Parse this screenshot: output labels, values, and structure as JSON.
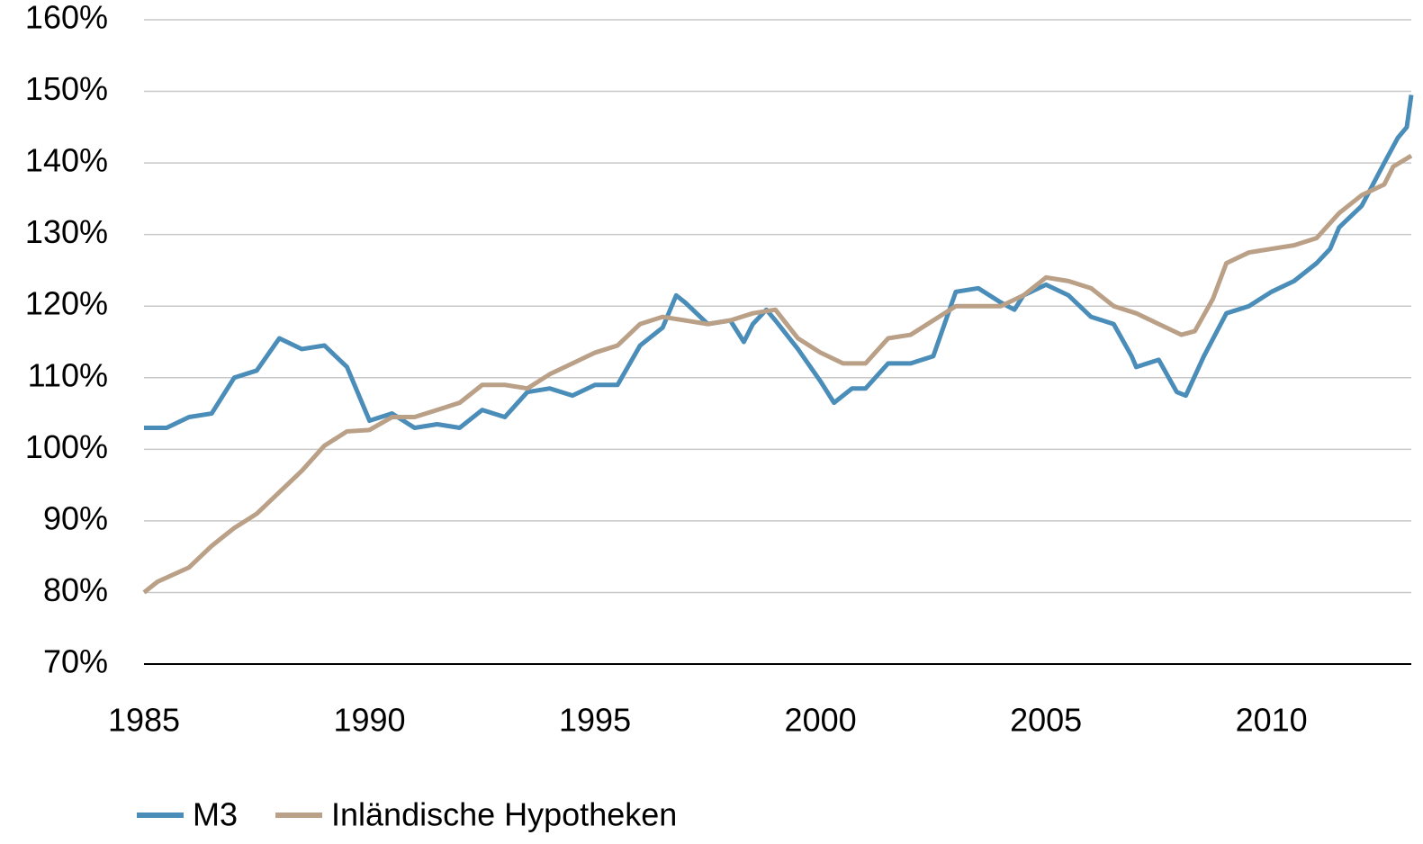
{
  "chart_data": {
    "type": "line",
    "series": [
      {
        "name": "M3",
        "color": "#4a8db8",
        "x": [
          1985,
          1985.5,
          1986,
          1986.5,
          1987,
          1987.5,
          1988,
          1988.5,
          1989,
          1989.5,
          1990,
          1990.5,
          1991,
          1991.5,
          1992,
          1992.5,
          1993,
          1993.5,
          1994,
          1994.5,
          1995,
          1995.5,
          1996,
          1996.5,
          1996.8,
          1997,
          1997.5,
          1998,
          1998.3,
          1998.5,
          1998.8,
          1999,
          1999.5,
          2000,
          2000.3,
          2000.7,
          2001,
          2001.5,
          2002,
          2002.5,
          2003,
          2003.5,
          2004,
          2004.3,
          2004.5,
          2005,
          2005.5,
          2006,
          2006.5,
          2006.9,
          2007,
          2007.5,
          2007.9,
          2008.1,
          2008.5,
          2009,
          2009.5,
          2010,
          2010.5,
          2011,
          2011.3,
          2011.5,
          2012,
          2012.5,
          2012.8,
          2013,
          2013.1
        ],
        "values": [
          103,
          103,
          104.5,
          105,
          110,
          111,
          115.5,
          114,
          114.5,
          111.5,
          104,
          105,
          103,
          103.5,
          103,
          105.5,
          104.5,
          108,
          108.5,
          107.5,
          109,
          109,
          114.5,
          117,
          121.5,
          120.5,
          117.5,
          118,
          115,
          117.5,
          119.5,
          118,
          114,
          109.5,
          106.5,
          108.5,
          108.5,
          112,
          112,
          113,
          122,
          122.5,
          120.5,
          119.5,
          121.5,
          123,
          121.5,
          118.5,
          117.5,
          113,
          111.5,
          112.5,
          108,
          107.5,
          113,
          119,
          120,
          122,
          123.5,
          126,
          128,
          131,
          134,
          140,
          143.5,
          145,
          149.5
        ]
      },
      {
        "name": "Inländische Hypotheken",
        "color": "#b9a087",
        "x": [
          1985,
          1985.3,
          1986,
          1986.5,
          1987,
          1987.5,
          1988,
          1988.5,
          1989,
          1989.5,
          1990,
          1990.5,
          1991,
          1991.5,
          1992,
          1992.5,
          1993,
          1993.5,
          1994,
          1994.5,
          1995,
          1995.5,
          1996,
          1996.5,
          1997,
          1997.5,
          1998,
          1998.5,
          1999,
          1999.5,
          2000,
          2000.5,
          2001,
          2001.5,
          2002,
          2002.5,
          2003,
          2003.5,
          2004,
          2004.5,
          2005,
          2005.5,
          2006,
          2006.5,
          2007,
          2007.5,
          2008,
          2008.3,
          2008.7,
          2009,
          2009.5,
          2010,
          2010.5,
          2011,
          2011.5,
          2012,
          2012.5,
          2012.7,
          2013.1
        ],
        "values": [
          80,
          81.5,
          83.5,
          86.5,
          89,
          91,
          94,
          97,
          100.5,
          102.5,
          102.7,
          104.5,
          104.5,
          105.5,
          106.5,
          109,
          109,
          108.5,
          110.5,
          112,
          113.5,
          114.5,
          117.5,
          118.5,
          118,
          117.5,
          118,
          119,
          119.5,
          115.5,
          113.5,
          112,
          112,
          115.5,
          116,
          118,
          120,
          120,
          120,
          121.5,
          124,
          123.5,
          122.5,
          120,
          119,
          117.5,
          116,
          116.5,
          121,
          126,
          127.5,
          128,
          128.5,
          129.5,
          133,
          135.5,
          137,
          139.5,
          141
        ]
      }
    ],
    "xlim": [
      1985,
      2013.1
    ],
    "xticks": [
      1985,
      1990,
      1995,
      2000,
      2005,
      2010
    ],
    "ylim": [
      70,
      160
    ],
    "yticks": [
      {
        "value": 70,
        "label": "70%"
      },
      {
        "value": 80,
        "label": "80%"
      },
      {
        "value": 90,
        "label": "90%"
      },
      {
        "value": 100,
        "label": "100%"
      },
      {
        "value": 110,
        "label": "110%"
      },
      {
        "value": 120,
        "label": "120%"
      },
      {
        "value": 130,
        "label": "130%"
      },
      {
        "value": 140,
        "label": "140%"
      },
      {
        "value": 150,
        "label": "150%"
      },
      {
        "value": 160,
        "label": "160%"
      }
    ],
    "grid": true,
    "legend": "bottom-left"
  }
}
